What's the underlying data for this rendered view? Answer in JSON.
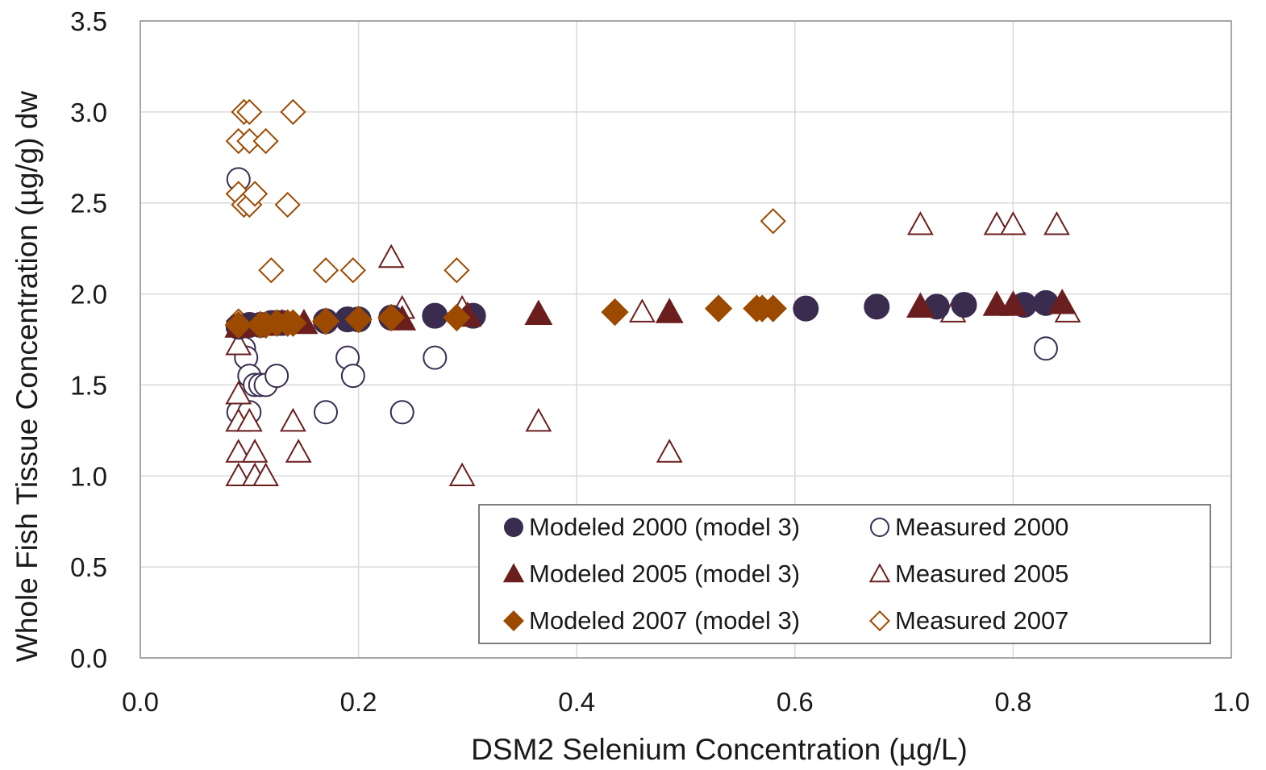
{
  "chart_data": {
    "type": "scatter",
    "xlabel": "DSM2 Selenium Concentration (µg/L)",
    "ylabel": "Whole Fish Tissue Concentration (µg/g) dw",
    "xlim": [
      0.0,
      1.0
    ],
    "ylim": [
      0.0,
      3.5
    ],
    "x_ticks": [
      "0.0",
      "0.2",
      "0.4",
      "0.6",
      "0.8",
      "1.0"
    ],
    "y_ticks": [
      "0.0",
      "0.5",
      "1.0",
      "1.5",
      "2.0",
      "2.5",
      "3.0",
      "3.5"
    ],
    "grid": true,
    "legend_position": "bottom-right",
    "series": [
      {
        "name": "Modeled 2000 (model 3)",
        "marker": "circle",
        "filled": true,
        "color": "#3a2c4f",
        "points": [
          [
            0.09,
            1.82
          ],
          [
            0.1,
            1.83
          ],
          [
            0.11,
            1.83
          ],
          [
            0.12,
            1.84
          ],
          [
            0.125,
            1.84
          ],
          [
            0.13,
            1.84
          ],
          [
            0.17,
            1.85
          ],
          [
            0.19,
            1.86
          ],
          [
            0.2,
            1.86
          ],
          [
            0.23,
            1.87
          ],
          [
            0.27,
            1.88
          ],
          [
            0.305,
            1.88
          ],
          [
            0.61,
            1.92
          ],
          [
            0.675,
            1.93
          ],
          [
            0.73,
            1.93
          ],
          [
            0.755,
            1.94
          ],
          [
            0.81,
            1.94
          ],
          [
            0.83,
            1.95
          ]
        ]
      },
      {
        "name": "Measured 2000",
        "marker": "circle",
        "filled": false,
        "color": "#3a2c4f",
        "points": [
          [
            0.09,
            2.63
          ],
          [
            0.09,
            1.35
          ],
          [
            0.095,
            1.7
          ],
          [
            0.097,
            1.65
          ],
          [
            0.1,
            1.35
          ],
          [
            0.1,
            1.55
          ],
          [
            0.105,
            1.5
          ],
          [
            0.11,
            1.5
          ],
          [
            0.115,
            1.5
          ],
          [
            0.125,
            1.55
          ],
          [
            0.17,
            1.35
          ],
          [
            0.19,
            1.65
          ],
          [
            0.195,
            1.55
          ],
          [
            0.24,
            1.35
          ],
          [
            0.27,
            1.65
          ],
          [
            0.83,
            1.7
          ]
        ]
      },
      {
        "name": "Modeled 2005 (model 3)",
        "marker": "triangle",
        "filled": true,
        "color": "#6b1e1e",
        "points": [
          [
            0.09,
            1.82
          ],
          [
            0.11,
            1.83
          ],
          [
            0.13,
            1.84
          ],
          [
            0.15,
            1.84
          ],
          [
            0.24,
            1.86
          ],
          [
            0.3,
            1.88
          ],
          [
            0.365,
            1.89
          ],
          [
            0.485,
            1.9
          ],
          [
            0.715,
            1.93
          ],
          [
            0.785,
            1.94
          ],
          [
            0.8,
            1.94
          ],
          [
            0.845,
            1.95
          ]
        ]
      },
      {
        "name": "Measured 2005",
        "marker": "triangle",
        "filled": false,
        "color": "#6b1e1e",
        "points": [
          [
            0.09,
            1.72
          ],
          [
            0.09,
            1.45
          ],
          [
            0.09,
            1.3
          ],
          [
            0.09,
            1.13
          ],
          [
            0.09,
            1.0
          ],
          [
            0.1,
            1.3
          ],
          [
            0.105,
            1.13
          ],
          [
            0.105,
            1.0
          ],
          [
            0.115,
            1.0
          ],
          [
            0.14,
            1.3
          ],
          [
            0.145,
            1.13
          ],
          [
            0.23,
            2.2
          ],
          [
            0.24,
            1.92
          ],
          [
            0.295,
            1.92
          ],
          [
            0.295,
            1.0
          ],
          [
            0.365,
            1.3
          ],
          [
            0.46,
            1.9
          ],
          [
            0.485,
            1.13
          ],
          [
            0.715,
            2.38
          ],
          [
            0.745,
            1.9
          ],
          [
            0.785,
            2.38
          ],
          [
            0.8,
            2.38
          ],
          [
            0.84,
            2.38
          ],
          [
            0.85,
            1.9
          ]
        ]
      },
      {
        "name": "Modeled 2007 (model 3)",
        "marker": "diamond",
        "filled": true,
        "color": "#9c4a00",
        "points": [
          [
            0.09,
            1.83
          ],
          [
            0.11,
            1.83
          ],
          [
            0.115,
            1.83
          ],
          [
            0.125,
            1.84
          ],
          [
            0.135,
            1.84
          ],
          [
            0.14,
            1.84
          ],
          [
            0.17,
            1.85
          ],
          [
            0.2,
            1.86
          ],
          [
            0.23,
            1.87
          ],
          [
            0.29,
            1.87
          ],
          [
            0.435,
            1.9
          ],
          [
            0.53,
            1.92
          ],
          [
            0.565,
            1.92
          ],
          [
            0.57,
            1.92
          ],
          [
            0.58,
            1.92
          ]
        ]
      },
      {
        "name": "Measured 2007",
        "marker": "diamond",
        "filled": false,
        "color": "#9c4a00",
        "points": [
          [
            0.09,
            2.84
          ],
          [
            0.095,
            3.0
          ],
          [
            0.1,
            3.0
          ],
          [
            0.09,
            2.55
          ],
          [
            0.095,
            2.49
          ],
          [
            0.1,
            2.84
          ],
          [
            0.1,
            2.49
          ],
          [
            0.105,
            2.55
          ],
          [
            0.115,
            2.84
          ],
          [
            0.12,
            2.13
          ],
          [
            0.135,
            2.49
          ],
          [
            0.14,
            3.0
          ],
          [
            0.17,
            2.13
          ],
          [
            0.195,
            2.13
          ],
          [
            0.29,
            2.13
          ],
          [
            0.58,
            2.4
          ],
          [
            0.09,
            1.85
          ]
        ]
      }
    ]
  }
}
